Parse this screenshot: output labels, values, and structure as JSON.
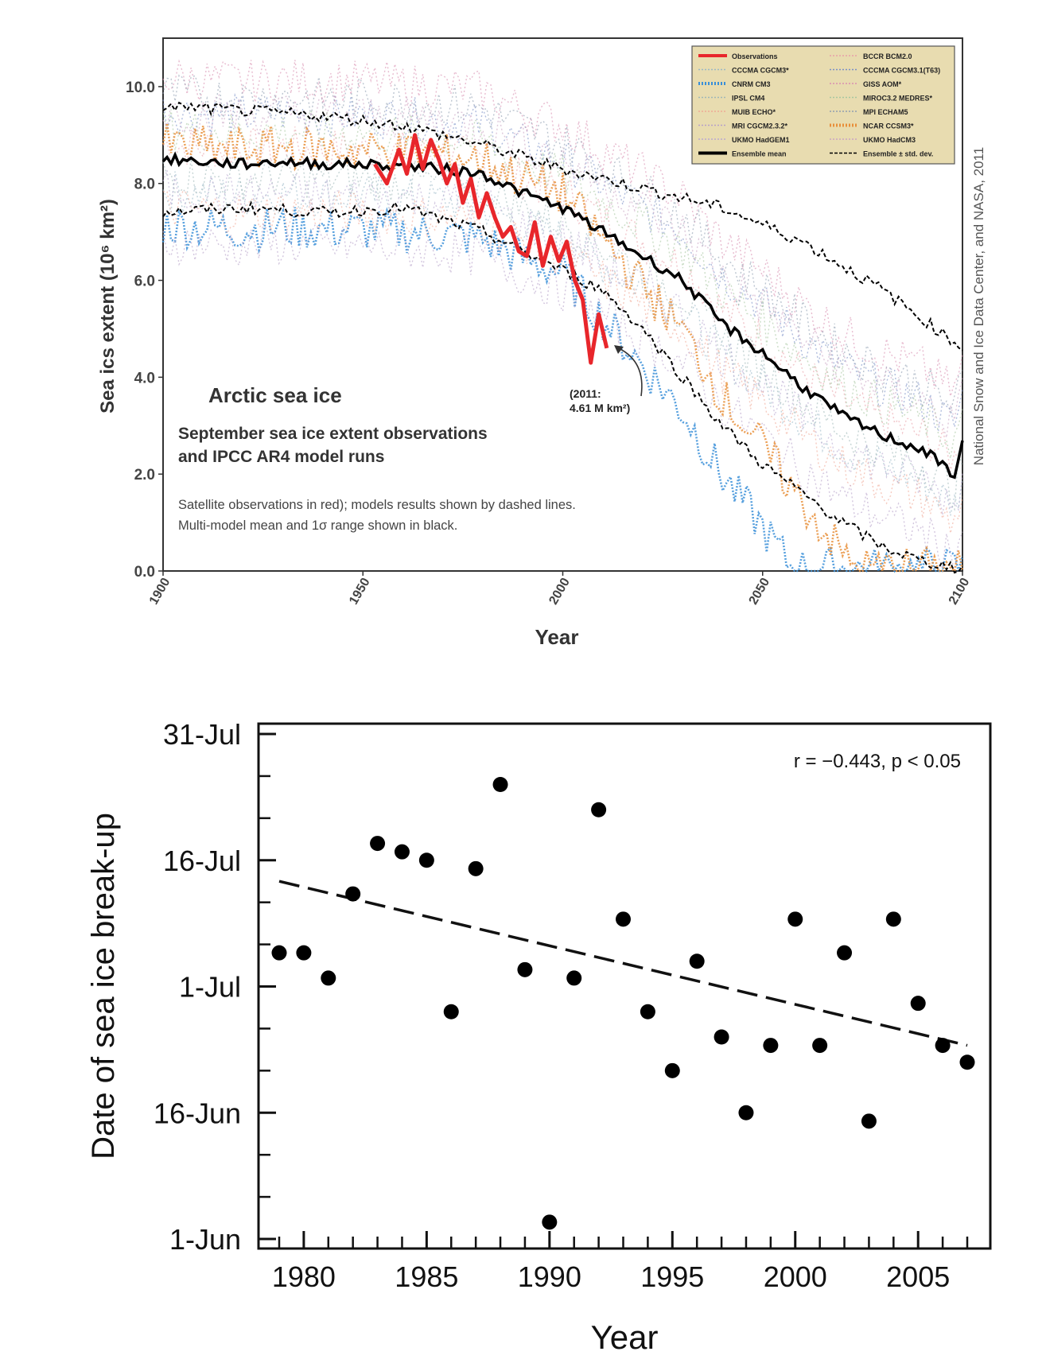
{
  "chart_data": [
    {
      "type": "line",
      "title": "Arctic sea ice",
      "subtitle_lines": [
        "September sea ice extent observations",
        "and IPCC AR4 model runs"
      ],
      "notes": [
        "Satellite observations in red); models results shown by dashed lines.",
        "Multi-model mean and 1σ range shown in black."
      ],
      "annotation_lines": [
        "(2011:",
        "4.61 M km²)"
      ],
      "credit": "National Snow and Ice Data Center, and NASA, 2011",
      "xlabel": "Year",
      "ylabel": "Sea ics extent (10⁶ km²)",
      "xlim": [
        1900,
        2100
      ],
      "ylim": [
        0,
        11
      ],
      "x_ticks": [
        "1900",
        "1950",
        "2000",
        "2050",
        "2100"
      ],
      "y_ticks": [
        "0.0",
        "2.0",
        "4.0",
        "6.0",
        "8.0",
        "10.0"
      ],
      "legend_position": "top-right",
      "legend": [
        {
          "name": "Observations",
          "color": "#e8262b",
          "style": "solid-thick"
        },
        {
          "name": "BCCR BCM2.0",
          "color": "#e7a0a8",
          "style": "dotted"
        },
        {
          "name": "CCCMA CGCM3*",
          "color": "#9ab8c6",
          "style": "dotted"
        },
        {
          "name": "CCCMA CGCM3.1(T63)",
          "color": "#7a8fc7",
          "style": "dotted"
        },
        {
          "name": "CNRM CM3",
          "color": "#3a8fd8",
          "style": "dotted-thick"
        },
        {
          "name": "GISS AOM*",
          "color": "#d98fb0",
          "style": "dotted"
        },
        {
          "name": "IPSL CM4",
          "color": "#9fb7b7",
          "style": "dotted"
        },
        {
          "name": "MIROC3.2 MEDRES*",
          "color": "#a7c7a0",
          "style": "dotted"
        },
        {
          "name": "MUIB ECHO*",
          "color": "#f0a996",
          "style": "dotted"
        },
        {
          "name": "MPI ECHAM5",
          "color": "#8f9fb0",
          "style": "dotted"
        },
        {
          "name": "MRI CGCM2.3.2*",
          "color": "#b6a0c8",
          "style": "dotted"
        },
        {
          "name": "NCAR CCSM3*",
          "color": "#e88f3a",
          "style": "dotted-thick"
        },
        {
          "name": "UKMO HadGEM1",
          "color": "#b9a8d0",
          "style": "dotted"
        },
        {
          "name": "UKMO HadCM3",
          "color": "#c9a3c3",
          "style": "dotted"
        },
        {
          "name": "Ensemble mean",
          "color": "#000000",
          "style": "solid-thick"
        },
        {
          "name": "Ensemble ± std. dev.",
          "color": "#000000",
          "style": "dashed"
        }
      ],
      "series": [
        {
          "name": "Ensemble mean",
          "x": [
            1900,
            1910,
            1920,
            1930,
            1940,
            1950,
            1960,
            1970,
            1980,
            1990,
            2000,
            2010,
            2020,
            2030,
            2040,
            2050,
            2060,
            2070,
            2080,
            2090,
            2098,
            2100
          ],
          "y": [
            8.5,
            8.45,
            8.4,
            8.45,
            8.4,
            8.4,
            8.35,
            8.3,
            8.2,
            7.8,
            7.5,
            7.0,
            6.5,
            6.0,
            5.1,
            4.5,
            3.8,
            3.2,
            2.8,
            2.5,
            2.0,
            2.6
          ]
        },
        {
          "name": "Ensemble + std. dev.",
          "x": [
            1900,
            1920,
            1940,
            1960,
            1980,
            2000,
            2020,
            2040,
            2060,
            2080,
            2090,
            2100
          ],
          "y": [
            9.6,
            9.5,
            9.4,
            9.2,
            8.8,
            8.3,
            7.9,
            7.5,
            6.8,
            5.8,
            5.2,
            4.6
          ]
        },
        {
          "name": "Ensemble - std. dev.",
          "x": [
            1900,
            1920,
            1940,
            1960,
            1980,
            2000,
            2010,
            2020,
            2030,
            2040,
            2050,
            2060,
            2070,
            2080,
            2090,
            2100
          ],
          "y": [
            7.4,
            7.5,
            7.4,
            7.5,
            7.0,
            6.2,
            5.8,
            5.0,
            4.0,
            3.0,
            2.2,
            1.6,
            1.0,
            0.5,
            0.2,
            0.05
          ]
        },
        {
          "name": "Observations",
          "x": [
            1953,
            1956,
            1959,
            1961,
            1963,
            1965,
            1967,
            1969,
            1971,
            1973,
            1975,
            1977,
            1979,
            1981,
            1983,
            1985,
            1987,
            1989,
            1991,
            1993,
            1995,
            1997,
            1999,
            2001,
            2003,
            2005,
            2007,
            2009,
            2011
          ],
          "y": [
            8.4,
            8.0,
            8.7,
            8.2,
            9.0,
            8.3,
            8.9,
            8.5,
            8.0,
            8.4,
            7.6,
            8.1,
            7.3,
            7.8,
            7.3,
            6.9,
            7.1,
            6.6,
            6.5,
            7.2,
            6.3,
            6.9,
            6.4,
            6.8,
            6.0,
            5.6,
            4.3,
            5.3,
            4.6
          ]
        }
      ]
    },
    {
      "type": "scatter",
      "annotation": "r = −0.443, p < 0.05",
      "xlabel": "Year",
      "ylabel": "Date of sea ice break-up",
      "xlim": [
        1978,
        2008
      ],
      "ylim": [
        0,
        60
      ],
      "y_unit": "days after 1-Jun",
      "x_ticks": [
        "1980",
        "1985",
        "1990",
        "1995",
        "2000",
        "2005"
      ],
      "y_ticks": [
        {
          "label": "1-Jun",
          "value": 0
        },
        {
          "label": "16-Jun",
          "value": 15
        },
        {
          "label": "1-Jul",
          "value": 30
        },
        {
          "label": "16-Jul",
          "value": 45
        },
        {
          "label": "31-Jul",
          "value": 60
        }
      ],
      "points": [
        {
          "x": 1979,
          "y": 34
        },
        {
          "x": 1980,
          "y": 34
        },
        {
          "x": 1981,
          "y": 31
        },
        {
          "x": 1982,
          "y": 41
        },
        {
          "x": 1983,
          "y": 47
        },
        {
          "x": 1984,
          "y": 46
        },
        {
          "x": 1985,
          "y": 45
        },
        {
          "x": 1986,
          "y": 27
        },
        {
          "x": 1987,
          "y": 44
        },
        {
          "x": 1988,
          "y": 54
        },
        {
          "x": 1989,
          "y": 32
        },
        {
          "x": 1990,
          "y": 2
        },
        {
          "x": 1991,
          "y": 31
        },
        {
          "x": 1992,
          "y": 51
        },
        {
          "x": 1993,
          "y": 38
        },
        {
          "x": 1994,
          "y": 27
        },
        {
          "x": 1995,
          "y": 20
        },
        {
          "x": 1996,
          "y": 33
        },
        {
          "x": 1997,
          "y": 24
        },
        {
          "x": 1998,
          "y": 15
        },
        {
          "x": 1999,
          "y": 23
        },
        {
          "x": 2000,
          "y": 38
        },
        {
          "x": 2001,
          "y": 23
        },
        {
          "x": 2002,
          "y": 34
        },
        {
          "x": 2003,
          "y": 14
        },
        {
          "x": 2004,
          "y": 38
        },
        {
          "x": 2005,
          "y": 28
        },
        {
          "x": 2006,
          "y": 23
        },
        {
          "x": 2007,
          "y": 21
        }
      ],
      "trend_line": {
        "x": [
          1979,
          2007
        ],
        "y": [
          42.5,
          23
        ]
      }
    }
  ]
}
